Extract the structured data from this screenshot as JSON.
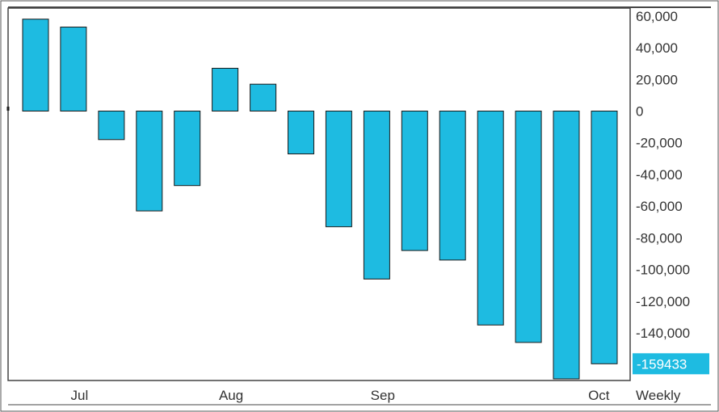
{
  "chart_data": {
    "type": "bar",
    "values": [
      58000,
      53000,
      -18000,
      -63000,
      -47000,
      27000,
      17000,
      -27000,
      -73000,
      -106000,
      -88000,
      -94000,
      -135000,
      -146000,
      -169000,
      -159433
    ],
    "ylim": [
      -170000,
      65000
    ],
    "yticks": [
      60000,
      40000,
      20000,
      0,
      -20000,
      -40000,
      -60000,
      -80000,
      -100000,
      -120000,
      -140000
    ],
    "ytick_labels": [
      "60,000",
      "40,000",
      "20,000",
      "0",
      "-20,000",
      "-40,000",
      "-60,000",
      "-80,000",
      "-100,000",
      "-120,000",
      "-140,000"
    ],
    "x_labels": [
      {
        "label": "Jul",
        "after_bar": 1.5
      },
      {
        "label": "Aug",
        "after_bar": 5.5
      },
      {
        "label": "Sep",
        "after_bar": 9.5
      },
      {
        "label": "Oct",
        "after_bar": 15.2
      }
    ],
    "last_value_label": "-159433",
    "period_label": "Weekly",
    "grid": false,
    "bar_color": "#1ebbe1",
    "badge_color": "#1ebbe1"
  }
}
